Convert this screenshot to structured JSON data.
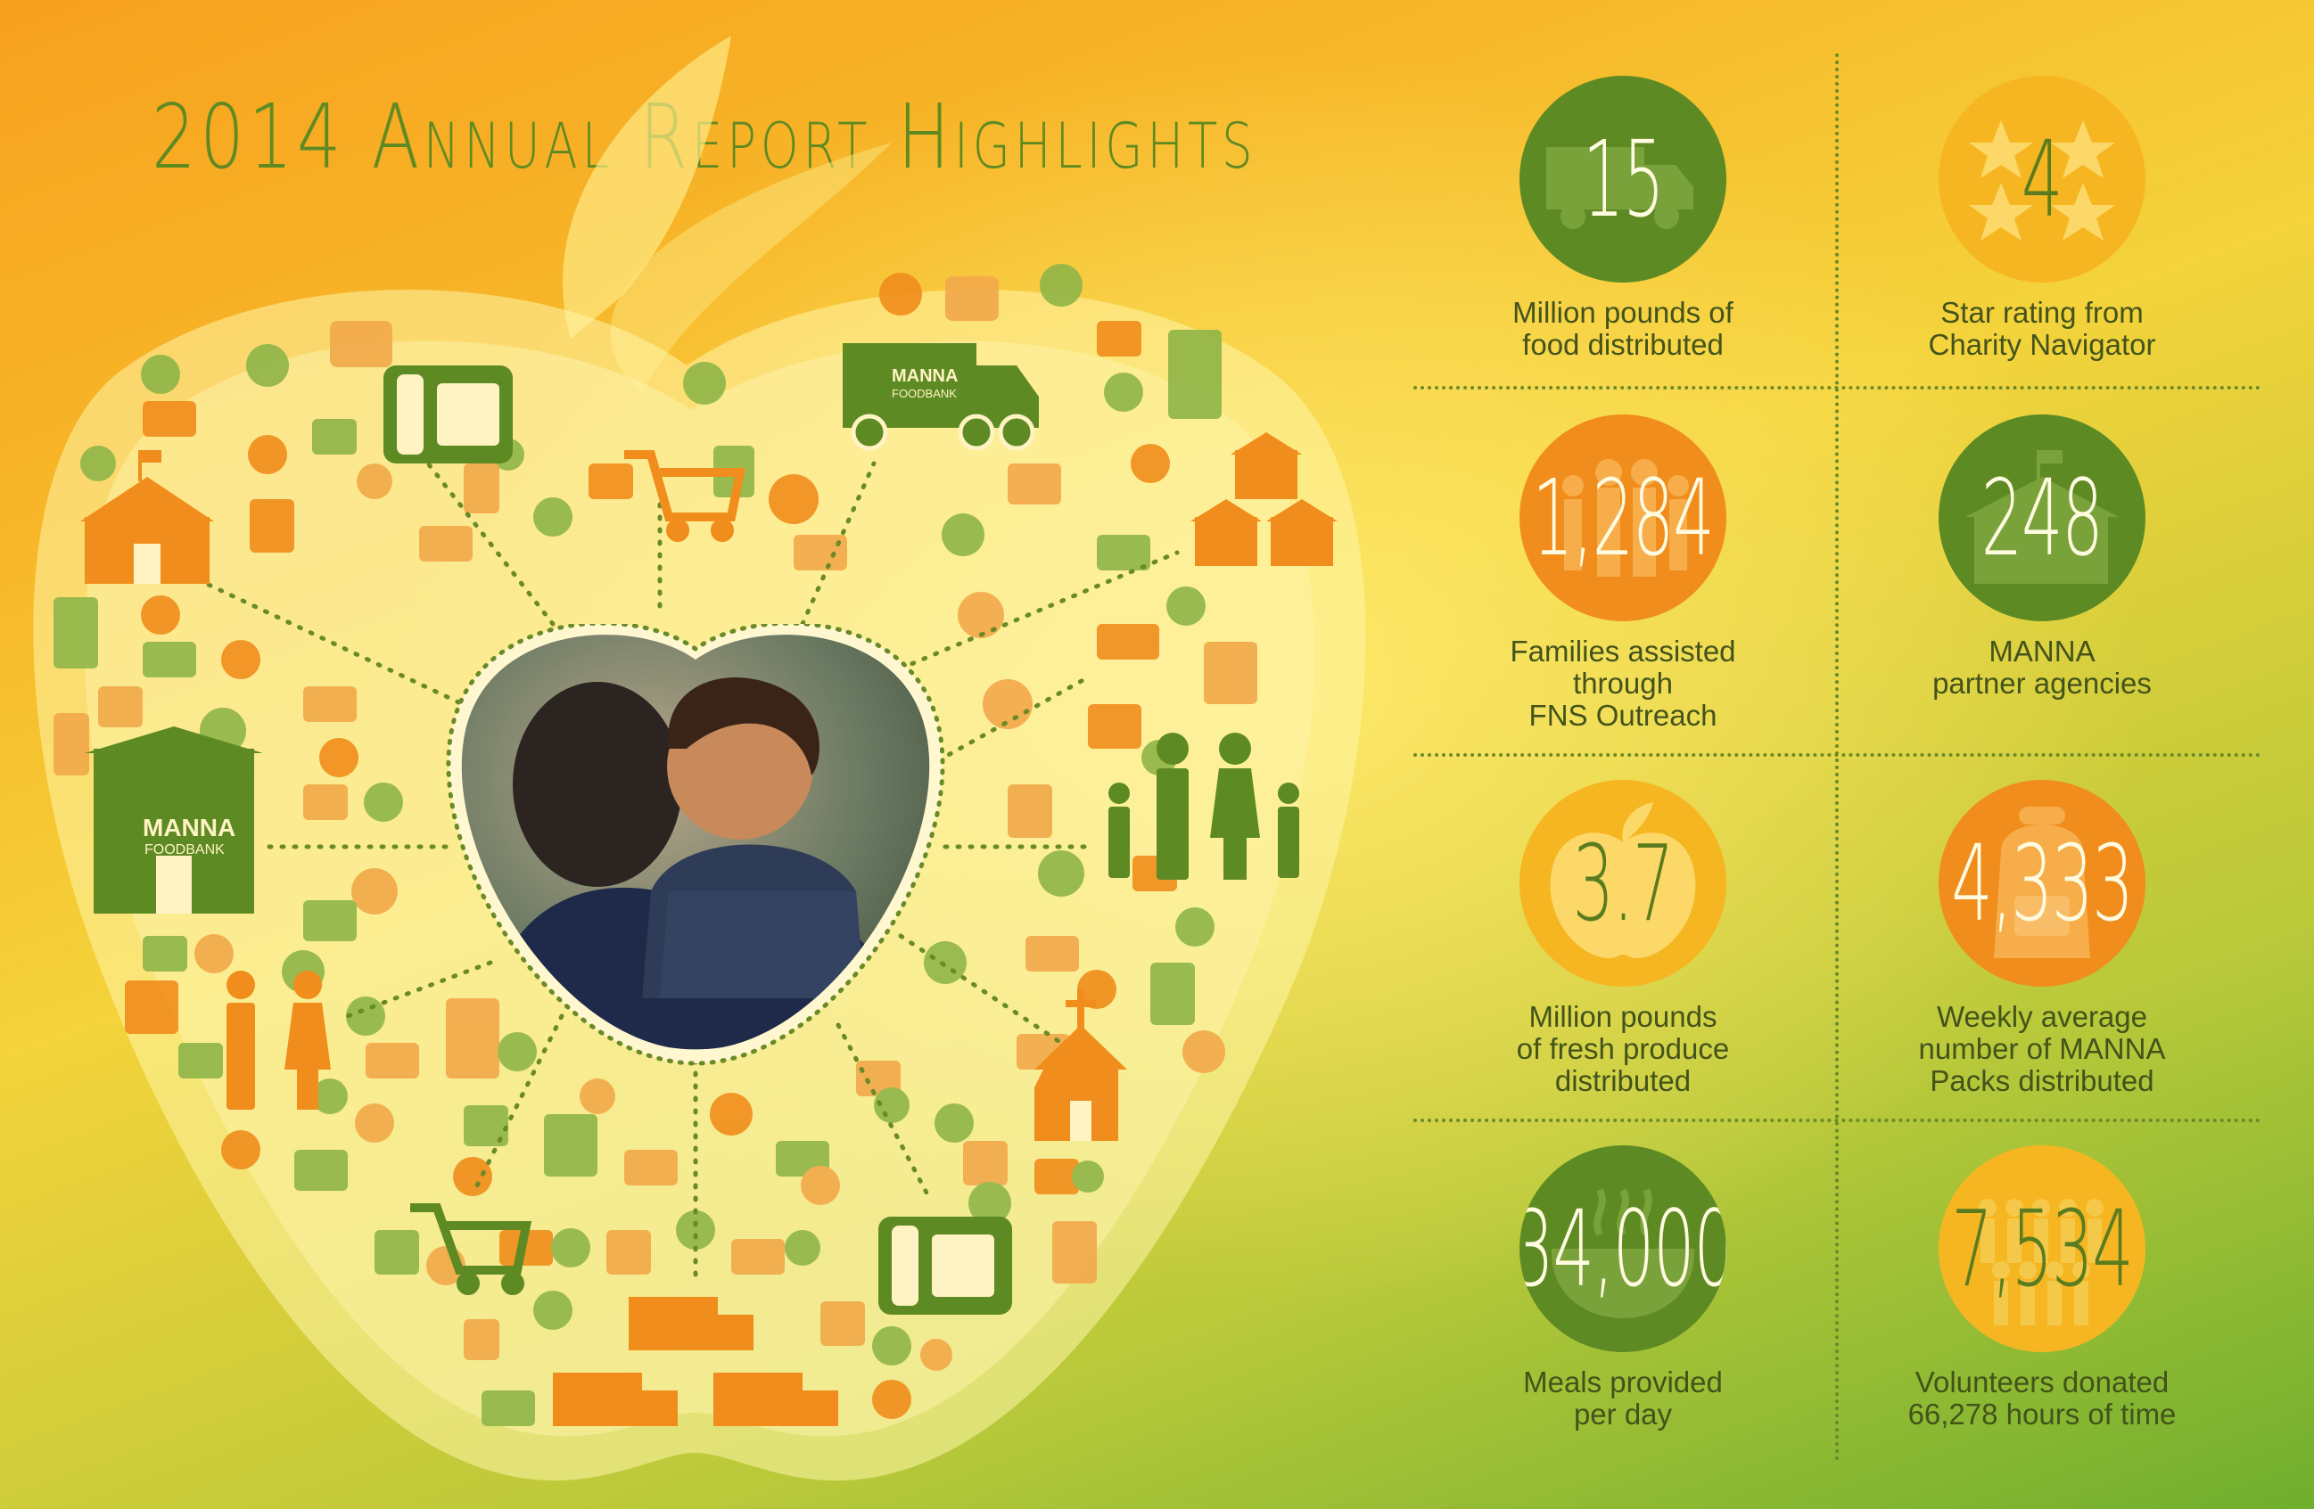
{
  "title": "2014 Annual Report Highlights",
  "logos": {
    "manna_brand": "MANNA",
    "manna_sub": "FOODBANK"
  },
  "colors": {
    "dark_green": "#5e8a24",
    "light_green": "#8fb548",
    "orange": "#f08d1c",
    "yellow": "#f6b622",
    "label_text": "#43531a"
  },
  "stats": [
    {
      "value": "15",
      "label": "Million pounds of\nfood distributed",
      "circle": "green",
      "icon": "truck-icon"
    },
    {
      "value": "4",
      "label": "Star rating from\nCharity Navigator",
      "circle": "yellow",
      "icon": "stars-icon"
    },
    {
      "value": "1,284",
      "label": "Families assisted\nthrough\nFNS Outreach",
      "circle": "orange",
      "icon": "family-icon"
    },
    {
      "value": "248",
      "label": "MANNA\npartner agencies",
      "circle": "green",
      "icon": "building-icon"
    },
    {
      "value": "3.7",
      "label": "Million pounds\nof fresh produce\ndistributed",
      "circle": "yellow",
      "icon": "apple-icon"
    },
    {
      "value": "4,333",
      "label": "Weekly average\nnumber of MANNA\nPacks distributed",
      "circle": "orange",
      "icon": "backpack-icon"
    },
    {
      "value": "34,000",
      "label": "Meals provided\nper day",
      "circle": "green",
      "icon": "bowl-icon"
    },
    {
      "value": "7,534",
      "label": "Volunteers donated\n66,278 hours of time",
      "circle": "yellow",
      "icon": "volunteers-icon"
    }
  ]
}
